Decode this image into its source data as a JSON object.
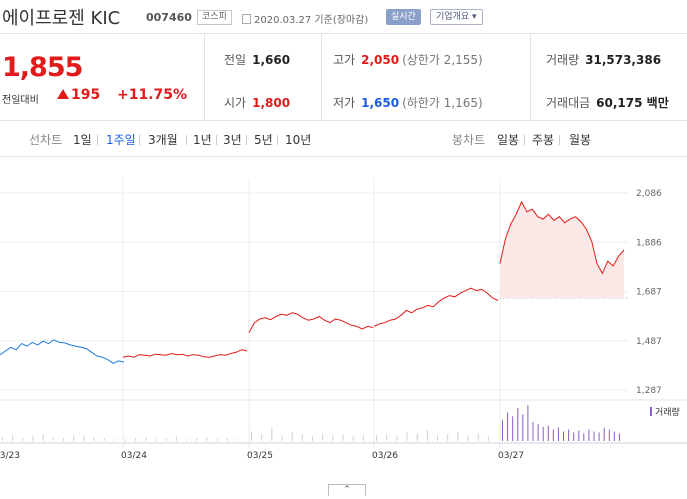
{
  "header": {
    "company_name": "에이프로젠 KIC",
    "stock_code": "007460",
    "market_badge": "코스피",
    "date_text": "2020.03.27 기준(장마감)",
    "realtime_label": "실시간",
    "overview_label": "기업개요 ▾"
  },
  "price": {
    "current": "1,855",
    "change_label": "전일대비",
    "change_value": "195",
    "change_pct": "+11.75%"
  },
  "stats": {
    "prev_close": {
      "label": "전일",
      "value": "1,660"
    },
    "high": {
      "label": "고가",
      "value": "2,050",
      "sub": "(상한가 2,155)"
    },
    "volume": {
      "label": "거래량",
      "value": "31,573,386"
    },
    "open": {
      "label": "시가",
      "value": "1,800"
    },
    "low": {
      "label": "저가",
      "value": "1,650",
      "sub": "(하한가 1,165)"
    },
    "trade_value": {
      "label": "거래대금",
      "value": "60,175 백만"
    }
  },
  "periods": {
    "line_label": "선차트",
    "items": [
      "1일",
      "1주일",
      "3개월",
      "1년",
      "3년",
      "5년",
      "10년"
    ],
    "active": "1주일",
    "candle_label": "봉차트",
    "candle_items": [
      "일봉",
      "주봉",
      "월봉"
    ]
  },
  "chart_data": {
    "type": "line",
    "y_ticks": [
      "2,086",
      "1,886",
      "1,687",
      "1,487",
      "1,287"
    ],
    "ylim": [
      1287,
      2086
    ],
    "x_ticks": [
      "03/23",
      "03/24",
      "03/25",
      "03/26",
      "03/27"
    ],
    "prev_close_reference": 1660,
    "series": [
      {
        "day": "03/23",
        "color": "#1a7ad9",
        "values": [
          1430,
          1445,
          1460,
          1450,
          1475,
          1465,
          1480,
          1470,
          1485,
          1475,
          1490,
          1480,
          1478,
          1470,
          1465,
          1460,
          1455,
          1440,
          1425,
          1420,
          1410,
          1395,
          1405,
          1400
        ]
      },
      {
        "day": "03/24",
        "color": "#e31a1a",
        "values": [
          1420,
          1425,
          1420,
          1430,
          1428,
          1425,
          1432,
          1430,
          1428,
          1435,
          1430,
          1432,
          1425,
          1430,
          1428,
          1422,
          1420,
          1425,
          1430,
          1428,
          1435,
          1440,
          1450,
          1445
        ]
      },
      {
        "day": "03/25",
        "color": "#e31a1a",
        "values": [
          1520,
          1560,
          1575,
          1580,
          1572,
          1585,
          1595,
          1590,
          1600,
          1595,
          1580,
          1570,
          1575,
          1585,
          1570,
          1560,
          1575,
          1570,
          1560,
          1550,
          1545,
          1535,
          1545,
          1540
        ]
      },
      {
        "day": "03/26",
        "color": "#e31a1a",
        "values": [
          1545,
          1555,
          1560,
          1570,
          1575,
          1590,
          1610,
          1600,
          1615,
          1620,
          1630,
          1625,
          1645,
          1660,
          1670,
          1665,
          1680,
          1690,
          1700,
          1690,
          1695,
          1680,
          1660,
          1650
        ]
      },
      {
        "day": "03/27",
        "color": "#e31a1a",
        "values": [
          1800,
          1900,
          1960,
          2000,
          2050,
          2010,
          2020,
          1990,
          1980,
          2000,
          1975,
          1990,
          1965,
          1980,
          1990,
          1970,
          1940,
          1890,
          1800,
          1760,
          1810,
          1790,
          1830,
          1855
        ]
      }
    ],
    "volume_label": "거래량",
    "volume": [
      [
        4,
        6,
        3,
        5,
        7,
        4,
        3,
        5,
        6,
        4,
        3,
        2
      ],
      [
        2,
        3,
        4,
        2,
        3,
        5,
        2,
        3,
        4,
        2,
        3,
        2
      ],
      [
        10,
        8,
        14,
        6,
        9,
        7,
        5,
        8,
        6,
        7,
        5,
        6
      ],
      [
        6,
        7,
        5,
        9,
        8,
        12,
        6,
        7,
        9,
        6,
        8,
        5
      ],
      [
        22,
        30,
        26,
        35,
        28,
        38,
        20,
        18,
        15,
        16,
        12,
        14,
        10,
        12,
        9,
        11,
        8,
        12,
        10,
        9,
        14,
        12,
        10,
        8
      ]
    ]
  },
  "collapse_label": "⌃"
}
